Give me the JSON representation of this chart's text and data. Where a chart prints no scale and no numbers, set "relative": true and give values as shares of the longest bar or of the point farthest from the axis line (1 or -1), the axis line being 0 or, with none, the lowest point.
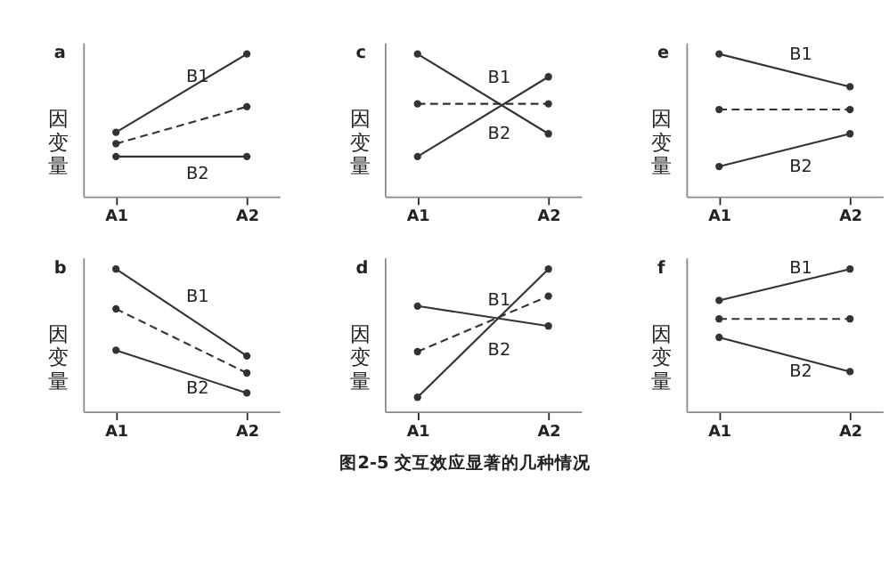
{
  "chart_data": [
    {
      "type": "line",
      "title": "a",
      "ylabel": "因变量",
      "categories": [
        "A1",
        "A2"
      ],
      "relative": true,
      "marker": "circle",
      "series": [
        {
          "name": "B1",
          "color": "#333333",
          "values": [
            0.45,
            1
          ]
        },
        {
          "color": "#333333",
          "line_style": "dashed",
          "values": [
            0.37,
            0.63
          ]
        },
        {
          "name": "B2",
          "color": "#333333",
          "values": [
            0.28,
            0.28
          ]
        }
      ]
    },
    {
      "type": "line",
      "title": "c",
      "ylabel": "因变量",
      "categories": [
        "A1",
        "A2"
      ],
      "relative": true,
      "marker": "circle",
      "series": [
        {
          "name": "B1",
          "color": "#333333",
          "values": [
            1,
            0.44
          ]
        },
        {
          "color": "#333333",
          "line_style": "dashed",
          "values": [
            0.65,
            0.65
          ]
        },
        {
          "name": "B2",
          "color": "#333333",
          "values": [
            0.28,
            0.84
          ]
        }
      ]
    },
    {
      "type": "line",
      "title": "e",
      "ylabel": "因变量",
      "categories": [
        "A1",
        "A2"
      ],
      "relative": true,
      "marker": "circle",
      "series": [
        {
          "name": "B1",
          "color": "#333333",
          "values": [
            1,
            0.77
          ]
        },
        {
          "color": "#333333",
          "line_style": "dashed",
          "values": [
            0.61,
            0.61
          ]
        },
        {
          "name": "B2",
          "color": "#333333",
          "values": [
            0.21,
            0.44
          ]
        }
      ]
    },
    {
      "type": "line",
      "title": "b",
      "ylabel": "因变量",
      "categories": [
        "A1",
        "A2"
      ],
      "relative": true,
      "marker": "circle",
      "series": [
        {
          "name": "B1",
          "color": "#333333",
          "values": [
            1,
            0.39
          ]
        },
        {
          "color": "#333333",
          "line_style": "dashed",
          "values": [
            0.72,
            0.27
          ]
        },
        {
          "name": "B2",
          "color": "#333333",
          "values": [
            0.43,
            0.13
          ]
        }
      ]
    },
    {
      "type": "line",
      "title": "d",
      "ylabel": "因变量",
      "categories": [
        "A1",
        "A2"
      ],
      "relative": true,
      "marker": "circle",
      "series": [
        {
          "name": "B1",
          "color": "#333333",
          "values": [
            0.74,
            0.6
          ]
        },
        {
          "color": "#333333",
          "line_style": "dashed",
          "values": [
            0.42,
            0.81
          ]
        },
        {
          "name": "B2",
          "color": "#333333",
          "values": [
            0.1,
            1
          ]
        }
      ]
    },
    {
      "type": "line",
      "title": "f",
      "ylabel": "因变量",
      "categories": [
        "A1",
        "A2"
      ],
      "relative": true,
      "marker": "circle",
      "annotations": [
        "图2-5 交互效应显著的几种情况"
      ],
      "series": [
        {
          "name": "B1",
          "color": "#333333",
          "values": [
            0.78,
            1
          ]
        },
        {
          "color": "#333333",
          "line_style": "dashed",
          "values": [
            0.65,
            0.65
          ]
        },
        {
          "name": "B2",
          "color": "#333333",
          "values": [
            0.52,
            0.28
          ]
        }
      ]
    }
  ]
}
